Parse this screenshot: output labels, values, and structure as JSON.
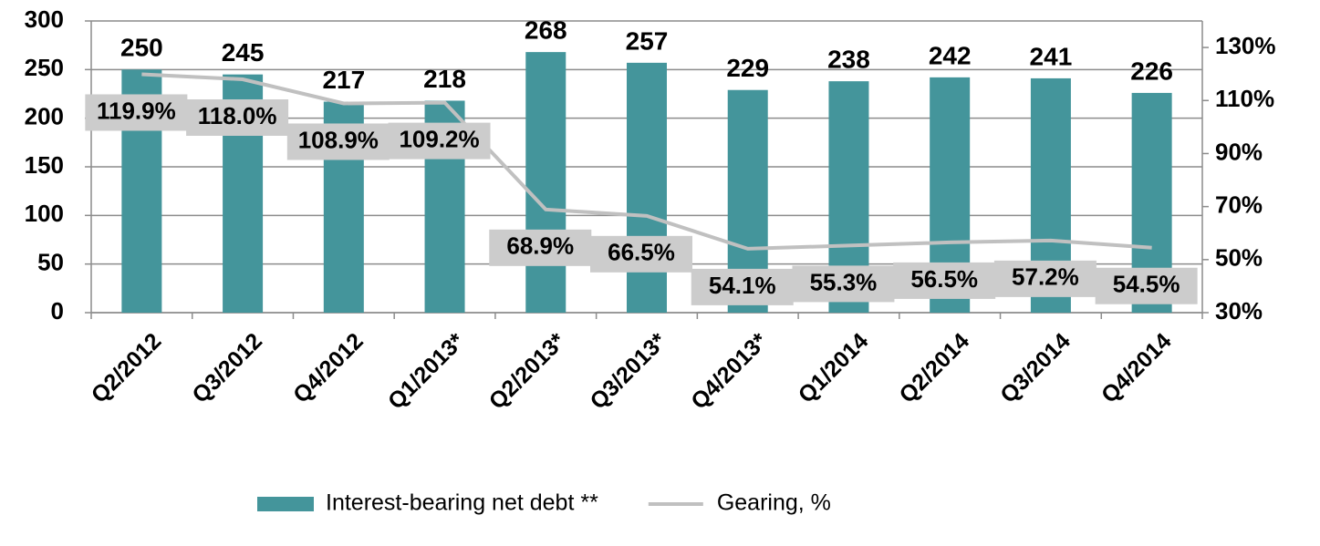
{
  "chart_data": {
    "type": "bar",
    "categories": [
      "Q2/2012",
      "Q3/2012",
      "Q4/2012",
      "Q1/2013*",
      "Q2/2013*",
      "Q3/2013*",
      "Q4/2013*",
      "Q1/2014",
      "Q2/2014",
      "Q3/2014",
      "Q4/2014"
    ],
    "series": [
      {
        "name": "Interest-bearing net debt **",
        "type": "bar",
        "color": "#44959b",
        "values": [
          250,
          245,
          217,
          218,
          268,
          257,
          229,
          238,
          242,
          241,
          226
        ]
      },
      {
        "name": "Gearing, %",
        "type": "line",
        "axis": "y2",
        "color": "#c0c0c0",
        "values": [
          119.9,
          118.0,
          108.9,
          109.2,
          68.9,
          66.5,
          54.1,
          55.3,
          56.5,
          57.2,
          54.5
        ],
        "value_labels": [
          "119.9%",
          "118.0%",
          "108.9%",
          "109.2%",
          "68.9%",
          "66.5%",
          "54.1%",
          "55.3%",
          "56.5%",
          "57.2%",
          "54.5%"
        ]
      }
    ],
    "ylim": [
      0,
      300
    ],
    "yticks": [
      0,
      50,
      100,
      150,
      200,
      250,
      300
    ],
    "y2lim": [
      30,
      140
    ],
    "y2ticks": [
      {
        "value": 30,
        "label": "30%"
      },
      {
        "value": 50,
        "label": "50%"
      },
      {
        "value": 70,
        "label": "70%"
      },
      {
        "value": 90,
        "label": "90%"
      },
      {
        "value": 110,
        "label": "110%"
      },
      {
        "value": 130,
        "label": "130%"
      }
    ],
    "grid": true,
    "legend": "bottom"
  }
}
